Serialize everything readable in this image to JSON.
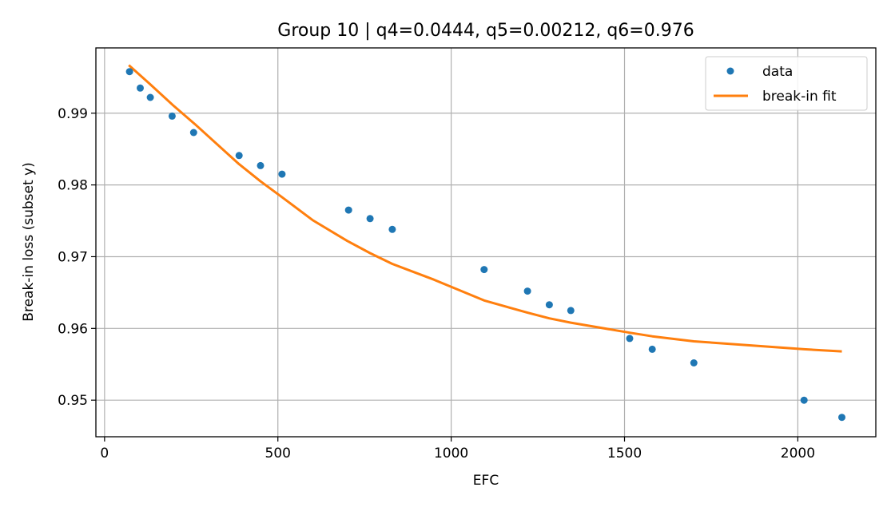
{
  "chart_data": {
    "type": "scatter",
    "title": "Group 10 | q4=0.0444, q5=0.00212, q6=0.976",
    "xlabel": "EFC",
    "ylabel": "Break-in loss (subset y)",
    "xlim": [
      -25,
      2225
    ],
    "ylim": [
      0.9449,
      0.9991
    ],
    "xticks": [
      0,
      500,
      1000,
      1500,
      2000
    ],
    "xtick_labels": [
      "0",
      "500",
      "1000",
      "1500",
      "2000"
    ],
    "yticks": [
      0.95,
      0.96,
      0.97,
      0.98,
      0.99
    ],
    "ytick_labels": [
      "0.95",
      "0.96",
      "0.97",
      "0.98",
      "0.99"
    ],
    "grid": true,
    "legend_position": "top-right",
    "colors": {
      "data": "#1f77b4",
      "fit": "#ff7f0e",
      "grid": "#b0b0b0"
    },
    "series": [
      {
        "name": "data",
        "kind": "scatter",
        "x": [
          72,
          103,
          132,
          195,
          257,
          388,
          450,
          512,
          704,
          766,
          830,
          1095,
          1220,
          1283,
          1345,
          1515,
          1580,
          1700,
          2018,
          2127
        ],
        "y": [
          0.9958,
          0.9935,
          0.9922,
          0.9896,
          0.9873,
          0.9841,
          0.9827,
          0.9815,
          0.9765,
          0.9753,
          0.9738,
          0.9682,
          0.9652,
          0.9633,
          0.9625,
          0.9586,
          0.9571,
          0.9552,
          0.95,
          0.9476
        ]
      },
      {
        "name": "break-in fit",
        "kind": "line",
        "x": [
          70,
          130,
          200,
          260,
          388,
          450,
          512,
          600,
          700,
          766,
          830,
          950,
          1095,
          1220,
          1283,
          1345,
          1515,
          1580,
          1700,
          2018,
          2127
        ],
        "y": [
          0.9967,
          0.9941,
          0.991,
          0.9885,
          0.9829,
          0.9805,
          0.9783,
          0.9751,
          0.9722,
          0.9705,
          0.969,
          0.9668,
          0.9639,
          0.9622,
          0.9614,
          0.9608,
          0.9594,
          0.9589,
          0.9582,
          0.9571,
          0.9568
        ]
      }
    ]
  }
}
